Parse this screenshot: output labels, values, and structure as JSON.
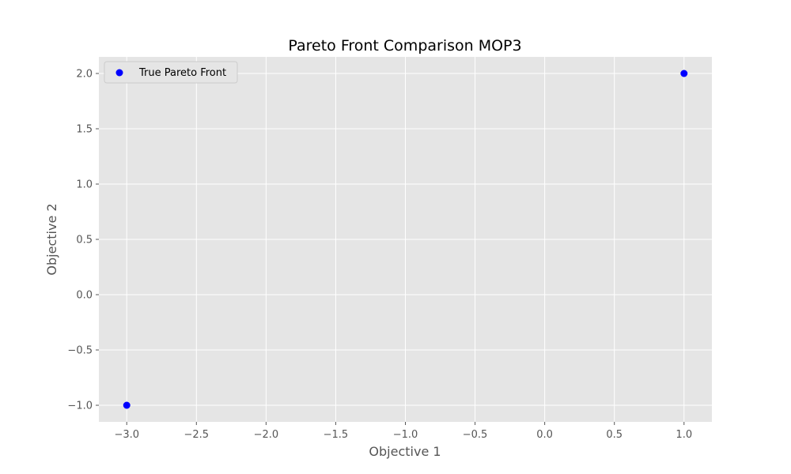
{
  "chart_data": {
    "type": "scatter",
    "title": "Pareto Front Comparison MOP3",
    "xlabel": "Objective 1",
    "ylabel": "Objective 2",
    "xlim": [
      -3.2,
      1.2
    ],
    "ylim": [
      -1.15,
      2.15
    ],
    "xticks": [
      -3.0,
      -2.5,
      -2.0,
      -1.5,
      -1.0,
      -0.5,
      0.0,
      0.5,
      1.0
    ],
    "xtick_labels": [
      "−3.0",
      "−2.5",
      "−2.0",
      "−1.5",
      "−1.0",
      "−0.5",
      "0.0",
      "0.5",
      "1.0"
    ],
    "yticks": [
      -1.0,
      -0.5,
      0.0,
      0.5,
      1.0,
      1.5,
      2.0
    ],
    "ytick_labels": [
      "−1.0",
      "−0.5",
      "0.0",
      "0.5",
      "1.0",
      "1.5",
      "2.0"
    ],
    "grid": true,
    "legend_position": "top-left",
    "background_color": "#e5e5e5",
    "grid_color": "#ffffff",
    "series": [
      {
        "name": "True Pareto Front",
        "color": "#0000ff",
        "points": [
          {
            "x": -3.0,
            "y": -1.0
          },
          {
            "x": 1.0,
            "y": 2.0
          }
        ]
      }
    ]
  }
}
